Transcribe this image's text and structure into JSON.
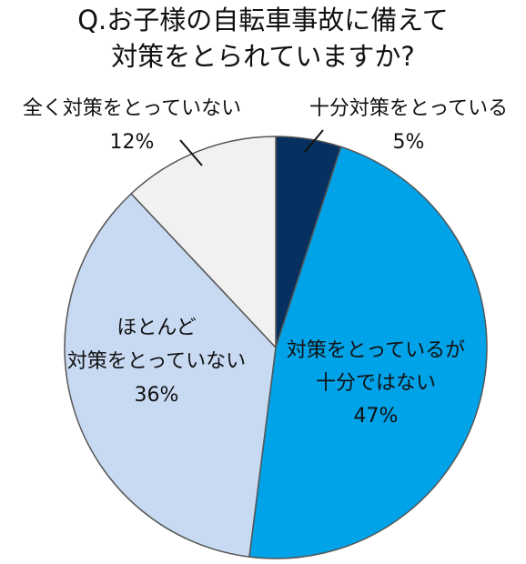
{
  "chart_data": {
    "type": "pie",
    "title_lines": [
      "Q.お子様の自転車事故に備えて",
      "対策をとられていますか?"
    ],
    "slices": [
      {
        "label_lines": [
          "十分対策をとっている"
        ],
        "percent_text": "5%",
        "value": 5,
        "color": "#05305f"
      },
      {
        "label_lines": [
          "対策をとっているが",
          "十分ではない"
        ],
        "percent_text": "47%",
        "value": 47,
        "color": "#00a2e8"
      },
      {
        "label_lines": [
          "ほとんど",
          "対策をとっていない"
        ],
        "percent_text": "36%",
        "value": 36,
        "color": "#c8daf2"
      },
      {
        "label_lines": [
          "全く対策をとっていない"
        ],
        "percent_text": "12%",
        "value": 12,
        "color": "#f1f1f1"
      }
    ],
    "stroke_color": "#555555"
  }
}
